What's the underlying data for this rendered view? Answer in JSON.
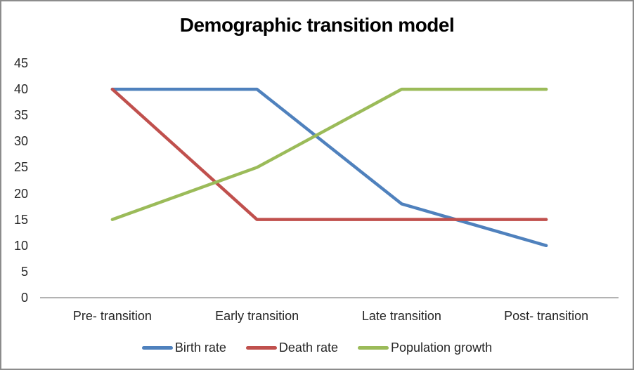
{
  "chart_data": {
    "type": "line",
    "title": "Demographic transition model",
    "categories": [
      "Pre- transition",
      "Early transition",
      "Late transition",
      "Post- transition"
    ],
    "series": [
      {
        "name": "Birth rate",
        "color": "#4F81BD",
        "values": [
          40,
          40,
          18,
          10
        ]
      },
      {
        "name": "Death rate",
        "color": "#C0504D",
        "values": [
          40,
          15,
          15,
          15
        ]
      },
      {
        "name": "Population growth",
        "color": "#9BBB59",
        "values": [
          15,
          25,
          40,
          40
        ]
      }
    ],
    "xlabel": "",
    "ylabel": "",
    "ylim": [
      0,
      45
    ],
    "ytick_step": 5,
    "grid": false,
    "legend_position": "bottom",
    "axis_color": "#9a9a9a",
    "text_color": "#262626",
    "frame_border_color": "#8c8c8c",
    "background_color": "#ffffff"
  }
}
